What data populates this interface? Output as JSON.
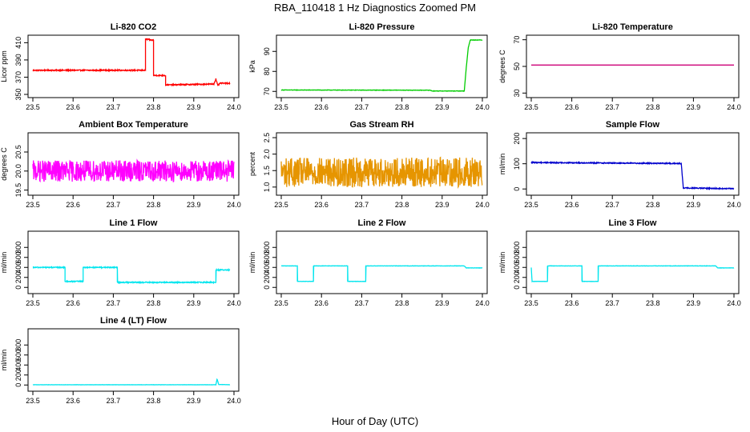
{
  "figure": {
    "title": "RBA_110418  1 Hz Diagnostics Zoomed PM",
    "xlabel": "Hour of Day (UTC)"
  },
  "chart_data": [
    {
      "type": "line",
      "title": "Li-820 CO2",
      "ylabel": "Licor ppm",
      "color": "#ff0000",
      "xlim": [
        23.5,
        24.0
      ],
      "ylim": [
        350,
        415
      ],
      "yticks": [
        350,
        370,
        390,
        410
      ],
      "xticks": [
        23.5,
        23.6,
        23.7,
        23.8,
        23.9,
        24.0
      ],
      "noise": 0.6,
      "segments": [
        [
          23.5,
          378
        ],
        [
          23.78,
          378
        ],
        [
          23.78,
          414
        ],
        [
          23.79,
          414
        ],
        [
          23.79,
          413
        ],
        [
          23.8,
          413
        ],
        [
          23.8,
          372
        ],
        [
          23.83,
          372
        ],
        [
          23.83,
          361
        ],
        [
          23.95,
          362
        ],
        [
          23.955,
          368
        ],
        [
          23.96,
          360
        ],
        [
          23.965,
          363
        ],
        [
          23.99,
          363
        ]
      ]
    },
    {
      "type": "line",
      "title": "Li-820 Pressure",
      "ylabel": "kPa",
      "color": "#00cc00",
      "xlim": [
        23.5,
        24.0
      ],
      "ylim": [
        68.5,
        96.5
      ],
      "yticks": [
        70,
        80,
        90
      ],
      "xticks": [
        23.5,
        23.6,
        23.7,
        23.8,
        23.9,
        24.0
      ],
      "noise": 0.1,
      "segments": [
        [
          23.5,
          70.7
        ],
        [
          23.87,
          70.6
        ],
        [
          23.875,
          70.2
        ],
        [
          23.955,
          70.2
        ],
        [
          23.96,
          82
        ],
        [
          23.965,
          92
        ],
        [
          23.97,
          95.7
        ],
        [
          24.0,
          95.7
        ]
      ]
    },
    {
      "type": "line",
      "title": "Li-820 Temperature",
      "ylabel": "degrees C",
      "color": "#cc0077",
      "xlim": [
        23.5,
        24.0
      ],
      "ylim": [
        29,
        71
      ],
      "yticks": [
        30,
        50,
        70
      ],
      "xticks": [
        23.5,
        23.6,
        23.7,
        23.8,
        23.9,
        24.0
      ],
      "noise": 0,
      "segments": [
        [
          23.5,
          51
        ],
        [
          24.0,
          51
        ]
      ]
    },
    {
      "type": "line",
      "title": "Ambient Box Temperature",
      "ylabel": "degrees C",
      "color": "#ff00ff",
      "xlim": [
        23.5,
        24.0
      ],
      "ylim": [
        19.45,
        20.92
      ],
      "yticks": [
        19.5,
        20.0,
        20.5
      ],
      "xticks": [
        23.5,
        23.6,
        23.7,
        23.8,
        23.9,
        24.0
      ],
      "noise": 0.28,
      "segments": [
        [
          23.5,
          20.0
        ],
        [
          24.0,
          20.0
        ]
      ]
    },
    {
      "type": "line",
      "title": "Gas Stream RH",
      "ylabel": "percent",
      "color": "#e69500",
      "xlim": [
        23.5,
        24.0
      ],
      "ylim": [
        0.85,
        2.55
      ],
      "yticks": [
        1.0,
        1.5,
        2.0,
        2.5
      ],
      "xticks": [
        23.5,
        23.6,
        23.7,
        23.8,
        23.9,
        24.0
      ],
      "noise": 0.45,
      "segments": [
        [
          23.5,
          1.45
        ],
        [
          24.0,
          1.45
        ]
      ]
    },
    {
      "type": "line",
      "title": "Sample Flow",
      "ylabel": "ml/min",
      "color": "#0000cc",
      "xlim": [
        23.5,
        24.0
      ],
      "ylim": [
        -12,
        210
      ],
      "yticks": [
        0,
        100,
        200
      ],
      "xticks": [
        23.5,
        23.6,
        23.7,
        23.8,
        23.9,
        24.0
      ],
      "noise": 2,
      "segments": [
        [
          23.5,
          105
        ],
        [
          23.87,
          101
        ],
        [
          23.875,
          4
        ],
        [
          24.0,
          1
        ]
      ]
    },
    {
      "type": "line",
      "title": "Line 1 Flow",
      "ylabel": "ml/min",
      "color": "#00e5ee",
      "xlim": [
        23.5,
        24.0
      ],
      "ylim": [
        -60,
        1060
      ],
      "yticks": [
        0,
        200,
        400,
        600,
        800
      ],
      "xticks": [
        23.5,
        23.6,
        23.7,
        23.8,
        23.9,
        24.0
      ],
      "noise": 10,
      "segments": [
        [
          23.5,
          400
        ],
        [
          23.58,
          400
        ],
        [
          23.58,
          120
        ],
        [
          23.625,
          120
        ],
        [
          23.625,
          400
        ],
        [
          23.71,
          400
        ],
        [
          23.71,
          100
        ],
        [
          23.955,
          100
        ],
        [
          23.955,
          350
        ],
        [
          23.99,
          350
        ]
      ]
    },
    {
      "type": "line",
      "title": "Line 2 Flow",
      "ylabel": "ml/min",
      "color": "#00e5ee",
      "xlim": [
        23.5,
        24.0
      ],
      "ylim": [
        -60,
        1060
      ],
      "yticks": [
        0,
        200,
        400,
        600,
        800
      ],
      "xticks": [
        23.5,
        23.6,
        23.7,
        23.8,
        23.9,
        24.0
      ],
      "noise": 3,
      "segments": [
        [
          23.5,
          430
        ],
        [
          23.54,
          430
        ],
        [
          23.54,
          120
        ],
        [
          23.58,
          120
        ],
        [
          23.58,
          430
        ],
        [
          23.665,
          430
        ],
        [
          23.665,
          120
        ],
        [
          23.71,
          120
        ],
        [
          23.71,
          430
        ],
        [
          23.955,
          430
        ],
        [
          23.96,
          390
        ],
        [
          24.0,
          390
        ]
      ]
    },
    {
      "type": "line",
      "title": "Line 3 Flow",
      "ylabel": "ml/min",
      "color": "#00e5ee",
      "xlim": [
        23.5,
        24.0
      ],
      "ylim": [
        -60,
        1060
      ],
      "yticks": [
        0,
        200,
        400,
        600,
        800
      ],
      "xticks": [
        23.5,
        23.6,
        23.7,
        23.8,
        23.9,
        24.0
      ],
      "noise": 3,
      "segments": [
        [
          23.5,
          120
        ],
        [
          23.5,
          400
        ],
        [
          23.502,
          120
        ],
        [
          23.54,
          120
        ],
        [
          23.54,
          430
        ],
        [
          23.625,
          430
        ],
        [
          23.625,
          120
        ],
        [
          23.665,
          120
        ],
        [
          23.665,
          430
        ],
        [
          23.955,
          430
        ],
        [
          23.96,
          390
        ],
        [
          24.0,
          390
        ]
      ]
    },
    {
      "type": "line",
      "title": "Line 4 (LT) Flow",
      "ylabel": "ml/min",
      "color": "#00e5ee",
      "xlim": [
        23.5,
        24.0
      ],
      "ylim": [
        -60,
        1060
      ],
      "yticks": [
        0,
        200,
        400,
        600,
        800
      ],
      "xticks": [
        23.5,
        23.6,
        23.7,
        23.8,
        23.9,
        24.0
      ],
      "noise": 2,
      "segments": [
        [
          23.5,
          5
        ],
        [
          23.955,
          5
        ],
        [
          23.958,
          120
        ],
        [
          23.962,
          10
        ],
        [
          23.99,
          5
        ]
      ]
    }
  ]
}
